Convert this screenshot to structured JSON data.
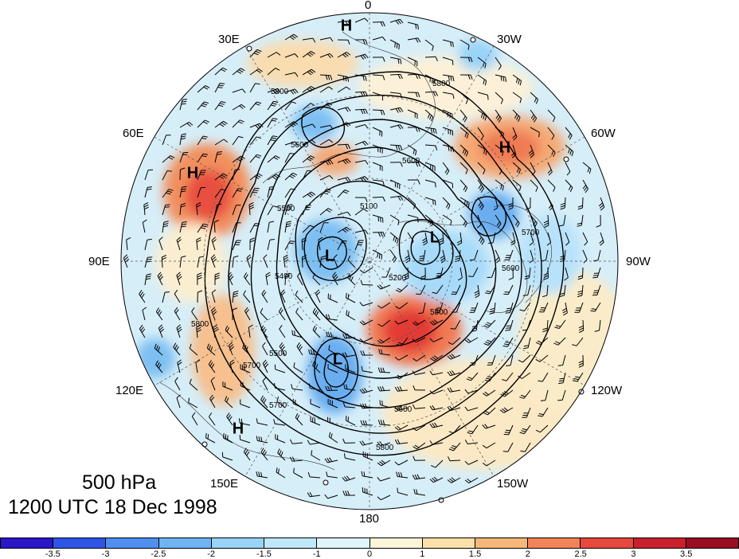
{
  "title": {
    "level": "500 hPa",
    "time": "1200 UTC 18 Dec 1998"
  },
  "longitude_labels": [
    {
      "text": "0",
      "pos": "top"
    },
    {
      "text": "30W",
      "pos": "top-right"
    },
    {
      "text": "60W",
      "pos": "upper-right"
    },
    {
      "text": "90W",
      "pos": "right"
    },
    {
      "text": "120W",
      "pos": "lower-right"
    },
    {
      "text": "150W",
      "pos": "bottom-right"
    },
    {
      "text": "180",
      "pos": "bottom"
    },
    {
      "text": "150E",
      "pos": "bottom-left"
    },
    {
      "text": "120E",
      "pos": "lower-left"
    },
    {
      "text": "90E",
      "pos": "left"
    },
    {
      "text": "60E",
      "pos": "upper-left"
    },
    {
      "text": "30E",
      "pos": "top-left"
    }
  ],
  "pressure_centers": [
    {
      "type": "H"
    },
    {
      "type": "H"
    },
    {
      "type": "H"
    },
    {
      "type": "H"
    },
    {
      "type": "L"
    },
    {
      "type": "L"
    },
    {
      "type": "L"
    }
  ],
  "contour_labels": [
    "5800",
    "5800",
    "5600",
    "5600",
    "5500",
    "5100",
    "5400",
    "5600",
    "5700",
    "5200",
    "5500",
    "5700",
    "5600",
    "5800",
    "5800",
    "5500",
    "5700"
  ],
  "colorbar": {
    "ticks": [
      "-3.5",
      "-3",
      "-2.5",
      "-2",
      "-1.5",
      "-1",
      "0",
      "1",
      "1.5",
      "2",
      "2.5",
      "3",
      "3.5"
    ],
    "colors": [
      "#2b16c8",
      "#2f55e8",
      "#4f8ff0",
      "#71b4f5",
      "#99d3f8",
      "#bfe8fb",
      "#e0f4fc",
      "#fcf5d9",
      "#fbe0aa",
      "#f7b77a",
      "#f28558",
      "#e8483d",
      "#c9202c",
      "#9a0f21"
    ]
  }
}
